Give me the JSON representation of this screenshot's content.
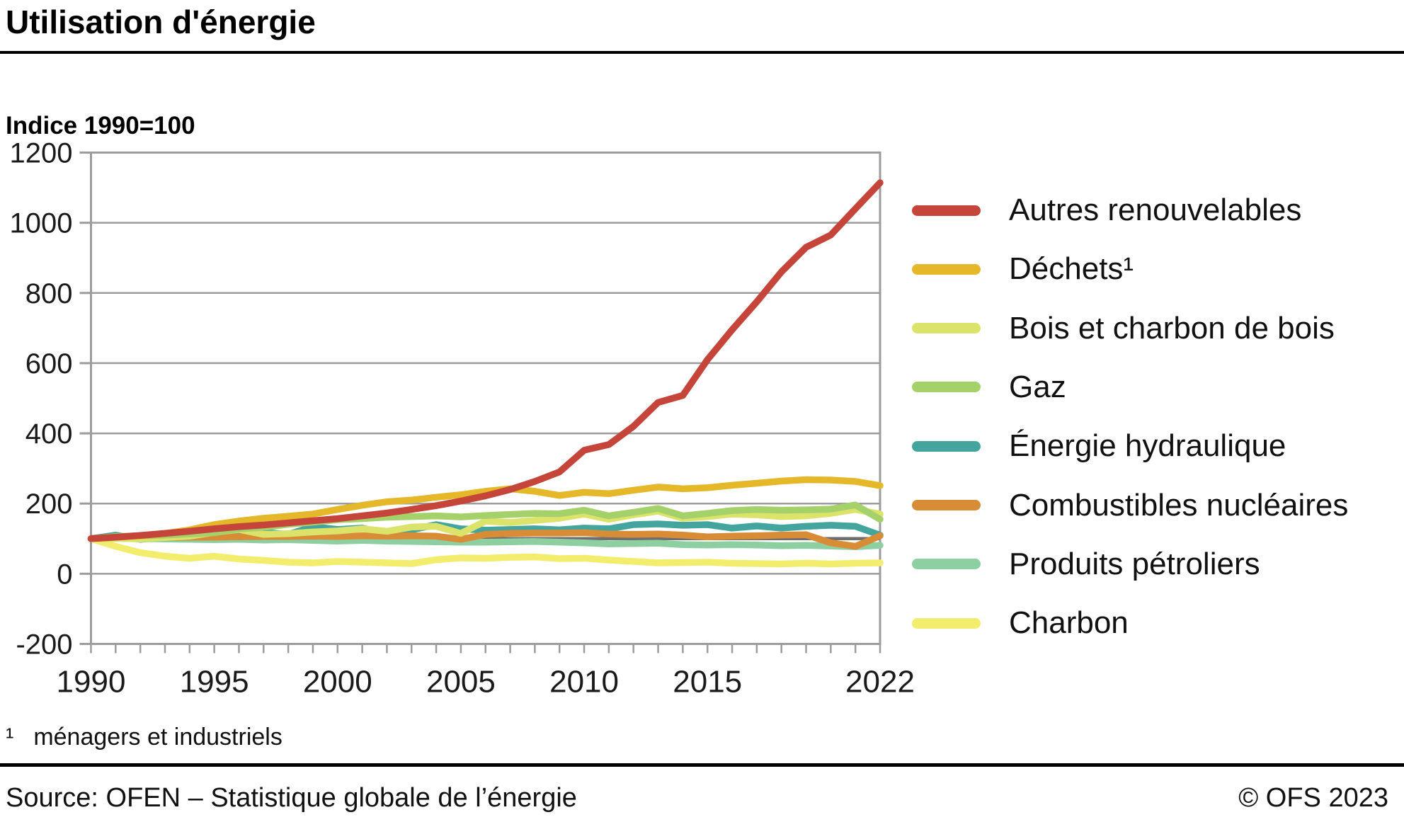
{
  "header": {
    "title": "Utilisation d'énergie",
    "subtitle": "Indice 1990=100"
  },
  "footnote": {
    "marker": "¹",
    "text": "ménagers et industriels"
  },
  "footer": {
    "source": "Source: OFEN – Statistique globale de l’énergie",
    "copyright": "© OFS 2023"
  },
  "chart_data": {
    "type": "line",
    "title": "Utilisation d'énergie",
    "subtitle": "Indice 1990=100",
    "x": [
      1990,
      1991,
      1992,
      1993,
      1994,
      1995,
      1996,
      1997,
      1998,
      1999,
      2000,
      2001,
      2002,
      2003,
      2004,
      2005,
      2006,
      2007,
      2008,
      2009,
      2010,
      2011,
      2012,
      2013,
      2014,
      2015,
      2016,
      2017,
      2018,
      2019,
      2020,
      2021,
      2022
    ],
    "x_labeled_ticks": [
      1990,
      1995,
      2000,
      2005,
      2010,
      2015,
      2022
    ],
    "ylim": [
      -200,
      1200
    ],
    "ytick_step": 200,
    "grid": true,
    "legend_position": "right",
    "axis_color": "#9c9c9c",
    "reference_line": {
      "value": 100,
      "color": "#6e6e6e"
    },
    "series": [
      {
        "name": "Autres renouvelables",
        "color": "#c5453a",
        "values": [
          100,
          104,
          109,
          115,
          121,
          128,
          134,
          139,
          145,
          151,
          157,
          165,
          173,
          183,
          194,
          207,
          222,
          240,
          263,
          290,
          352,
          368,
          420,
          488,
          508,
          610,
          695,
          775,
          860,
          930,
          965,
          1040,
          1114
        ]
      },
      {
        "name": "Déchets¹",
        "color": "#e4b829",
        "values": [
          100,
          104,
          108,
          115,
          125,
          140,
          150,
          158,
          164,
          170,
          183,
          195,
          205,
          210,
          218,
          225,
          235,
          242,
          235,
          223,
          232,
          228,
          238,
          247,
          242,
          245,
          252,
          258,
          264,
          268,
          267,
          263,
          251
        ]
      },
      {
        "name": "Bois et charbon de bois",
        "color": "#dce36a",
        "values": [
          100,
          101,
          99,
          103,
          107,
          118,
          126,
          112,
          114,
          119,
          122,
          128,
          121,
          133,
          135,
          115,
          150,
          146,
          152,
          158,
          170,
          155,
          168,
          178,
          158,
          163,
          170,
          168,
          163,
          165,
          172,
          183,
          170
        ]
      },
      {
        "name": "Gaz",
        "color": "#a5d16a",
        "values": [
          100,
          106,
          108,
          110,
          113,
          117,
          128,
          132,
          141,
          147,
          154,
          157,
          161,
          163,
          165,
          162,
          166,
          169,
          172,
          171,
          181,
          165,
          175,
          186,
          165,
          172,
          180,
          183,
          181,
          182,
          184,
          196,
          155
        ]
      },
      {
        "name": "Énergie hydraulique",
        "color": "#43a59d",
        "values": [
          100,
          110,
          98,
          104,
          112,
          112,
          108,
          118,
          112,
          134,
          126,
          130,
          112,
          125,
          140,
          128,
          124,
          126,
          128,
          125,
          130,
          128,
          140,
          142,
          138,
          140,
          130,
          136,
          130,
          135,
          138,
          135,
          110
        ]
      },
      {
        "name": "Combustibles nucléaires",
        "color": "#d78c35",
        "values": [
          100,
          102,
          102,
          103,
          104,
          104,
          105,
          106,
          106,
          107,
          106,
          108,
          107,
          108,
          107,
          98,
          112,
          115,
          116,
          116,
          117,
          113,
          112,
          113,
          110,
          105,
          107,
          108,
          110,
          111,
          88,
          78,
          108
        ]
      },
      {
        "name": "Produits pétroliers",
        "color": "#8ecfa2",
        "values": [
          100,
          101,
          100,
          99,
          98,
          97,
          98,
          96,
          97,
          95,
          93,
          95,
          93,
          92,
          91,
          90,
          90,
          91,
          92,
          90,
          88,
          85,
          86,
          87,
          83,
          82,
          83,
          82,
          80,
          81,
          79,
          77,
          81
        ]
      },
      {
        "name": "Charbon",
        "color": "#f3ed6d",
        "values": [
          100,
          78,
          60,
          50,
          44,
          50,
          42,
          38,
          33,
          31,
          35,
          33,
          31,
          29,
          40,
          45,
          44,
          47,
          48,
          43,
          44,
          39,
          35,
          31,
          32,
          33,
          30,
          29,
          28,
          30,
          28,
          30,
          31
        ]
      }
    ]
  }
}
